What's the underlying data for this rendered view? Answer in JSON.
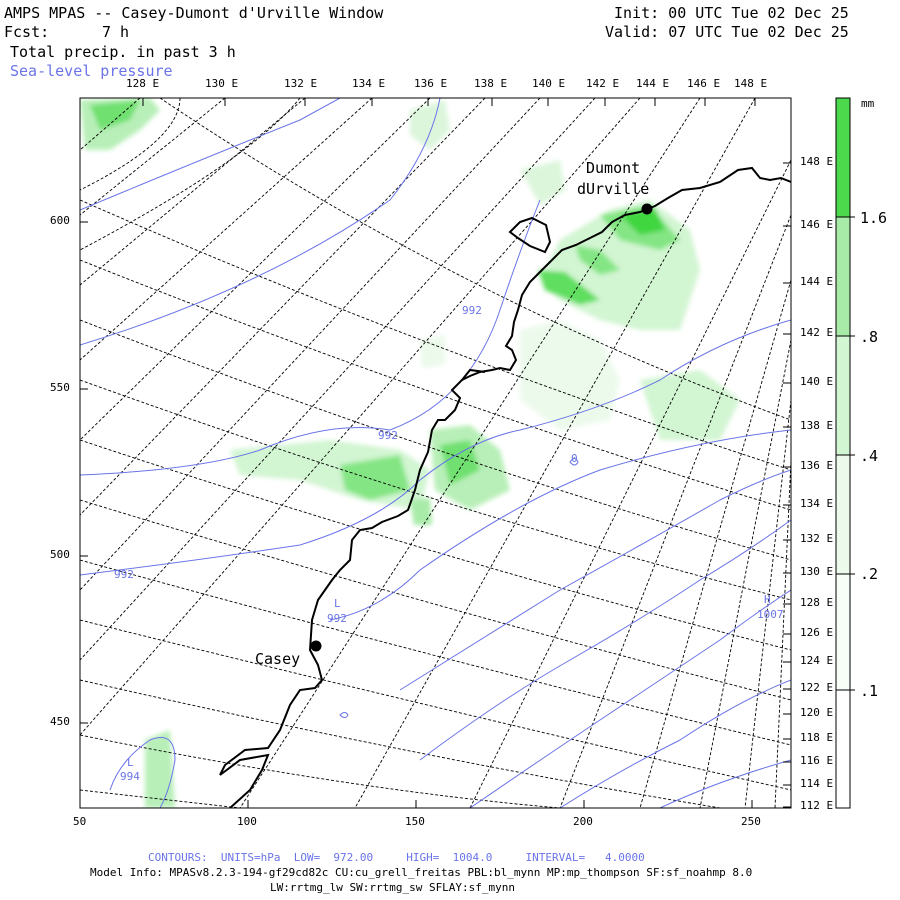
{
  "header": {
    "title": "AMPS MPAS -- Casey-Dumont d'Urville Window",
    "fcst_label": "Fcst:",
    "fcst_value": "7 h",
    "field": "Total precip. in past 3 h",
    "overlay": "Sea-level pressure",
    "init": "Init: 00 UTC Tue 02 Dec 25",
    "valid": "Valid: 07 UTC Tue 02 Dec 25"
  },
  "top_lon_labels": [
    "128 E",
    "130 E",
    "132 E",
    "134 E",
    "136 E",
    "138 E",
    "140 E",
    "142 E",
    "144 E",
    "146 E",
    "148 E"
  ],
  "right_lon_labels": [
    "148 E",
    "146 E",
    "144 E",
    "142 E",
    "140 E",
    "138 E",
    "136 E",
    "134 E",
    "132 E",
    "130 E",
    "128 E",
    "126 E",
    "124 E",
    "122 E",
    "120 E",
    "118 E",
    "116 E",
    "114 E",
    "112 E"
  ],
  "left_axis": [
    "600",
    "550",
    "500",
    "450"
  ],
  "bottom_axis": [
    "50",
    "100",
    "150",
    "200",
    "250"
  ],
  "places": {
    "dumont_line1": "Dumont",
    "dumont_line2": "dUrville",
    "casey": "Casey"
  },
  "contour_labels": [
    "992",
    "992",
    "992",
    "992",
    "992",
    "994",
    "1007",
    "0"
  ],
  "pressure_centers": [
    {
      "sym": "L",
      "value": "992"
    },
    {
      "sym": "L",
      "value": "994"
    },
    {
      "sym": "H",
      "value": "1007"
    }
  ],
  "colorbar": {
    "units": "mm",
    "levels": [
      ".1",
      ".2",
      ".4",
      ".8",
      "1.6"
    ],
    "colors": [
      "#ffffff",
      "#ecfaec",
      "#d2f5d2",
      "#a8eba8",
      "#4cd94c"
    ]
  },
  "footer": {
    "contours": "CONTOURS:  UNITS=hPa  LOW=  972.00     HIGH=  1004.0     INTERVAL=   4.0000",
    "model_info_1": "Model Info: MPASv8.2.3-194-gf29cd82c CU:cu_grell_freitas PBL:bl_mynn MP:mp_thompson SF:sf_noahmp 8.0",
    "model_info_2": "LW:rrtmg_lw SW:rrtmg_sw SFLAY:sf_mynn"
  },
  "colors": {
    "pressure": "#6a74e8",
    "coast": "#000000",
    "grid": "#000000"
  }
}
